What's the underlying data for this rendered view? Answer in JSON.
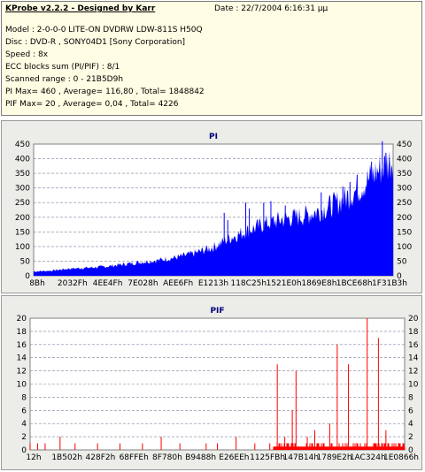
{
  "header": {
    "title": "KProbe v2.2.2 - Designed by Karr",
    "date": "Date : 22/7/2004 6:16:31 μμ",
    "lines": [
      "Model : 2-0-0-0 LITE-ON DVDRW LDW-811S   H50Q",
      "Disc : DVD-R , SONY04D1 [Sony Corporation]",
      "Speed : 8x",
      "ECC blocks sum (PI/PIF) : 8/1",
      "Scanned range : 0 - 21B5D9h",
      "PI Max= 460 , Average= 116,80 , Total= 1848842",
      "PIF Max= 20 , Average= 0,04 , Total= 4226"
    ]
  },
  "colors": {
    "info_bg": "#fffde3",
    "panel_bg": "#ecece8",
    "pi_bar": "#0000ff",
    "pif_bar": "#ff0000",
    "title_color": "#00007a"
  },
  "chart_data": [
    {
      "type": "area",
      "title": "PI",
      "ylim": [
        0,
        450
      ],
      "yticks": [
        0,
        50,
        100,
        150,
        200,
        250,
        300,
        350,
        400,
        450
      ],
      "xticks": [
        "8Bh",
        "2032Fh",
        "4EE4Fh",
        "7E028h",
        "AEE6Fh",
        "E1213h",
        "118C25h",
        "1521E0h",
        "1869E8h",
        "1BCE68h",
        "1F31B3h"
      ],
      "grid": true,
      "envelope": [
        {
          "x": 0.0,
          "y": 15
        },
        {
          "x": 0.05,
          "y": 18
        },
        {
          "x": 0.1,
          "y": 25
        },
        {
          "x": 0.15,
          "y": 28
        },
        {
          "x": 0.2,
          "y": 32
        },
        {
          "x": 0.25,
          "y": 40
        },
        {
          "x": 0.3,
          "y": 48
        },
        {
          "x": 0.35,
          "y": 55
        },
        {
          "x": 0.4,
          "y": 65
        },
        {
          "x": 0.45,
          "y": 80
        },
        {
          "x": 0.5,
          "y": 100
        },
        {
          "x": 0.55,
          "y": 135
        },
        {
          "x": 0.6,
          "y": 160
        },
        {
          "x": 0.65,
          "y": 185
        },
        {
          "x": 0.7,
          "y": 200
        },
        {
          "x": 0.75,
          "y": 210
        },
        {
          "x": 0.8,
          "y": 230
        },
        {
          "x": 0.85,
          "y": 260
        },
        {
          "x": 0.9,
          "y": 300
        },
        {
          "x": 0.95,
          "y": 360
        },
        {
          "x": 1.0,
          "y": 410
        }
      ],
      "peaks": [
        {
          "x": 0.53,
          "y": 215
        },
        {
          "x": 0.54,
          "y": 190
        },
        {
          "x": 0.59,
          "y": 250
        },
        {
          "x": 0.6,
          "y": 230
        },
        {
          "x": 0.64,
          "y": 250
        },
        {
          "x": 0.66,
          "y": 255
        },
        {
          "x": 0.7,
          "y": 240
        },
        {
          "x": 0.8,
          "y": 285
        },
        {
          "x": 0.86,
          "y": 305
        },
        {
          "x": 0.88,
          "y": 320
        },
        {
          "x": 0.9,
          "y": 345
        },
        {
          "x": 0.94,
          "y": 390
        },
        {
          "x": 0.97,
          "y": 460
        },
        {
          "x": 0.98,
          "y": 420
        }
      ]
    },
    {
      "type": "bar",
      "title": "PIF",
      "ylim": [
        0,
        20
      ],
      "yticks": [
        0,
        2,
        4,
        6,
        8,
        10,
        12,
        14,
        16,
        18,
        20
      ],
      "xticks": [
        "12h",
        "1B502h",
        "428F2h",
        "68FFEh",
        "8F780h",
        "B9488h",
        "E26EEh",
        "1125FBh",
        "147B14h",
        "1789E2h",
        "1AC324h",
        "1E0866h"
      ],
      "grid": true,
      "baseline_start": 0.65,
      "peaks": [
        {
          "x": 0.0,
          "y": 1
        },
        {
          "x": 0.02,
          "y": 1
        },
        {
          "x": 0.04,
          "y": 1
        },
        {
          "x": 0.08,
          "y": 2
        },
        {
          "x": 0.12,
          "y": 1
        },
        {
          "x": 0.18,
          "y": 1
        },
        {
          "x": 0.24,
          "y": 1
        },
        {
          "x": 0.3,
          "y": 1
        },
        {
          "x": 0.35,
          "y": 2
        },
        {
          "x": 0.4,
          "y": 1
        },
        {
          "x": 0.47,
          "y": 1
        },
        {
          "x": 0.5,
          "y": 1
        },
        {
          "x": 0.55,
          "y": 2
        },
        {
          "x": 0.6,
          "y": 1
        },
        {
          "x": 0.64,
          "y": 1
        },
        {
          "x": 0.66,
          "y": 13
        },
        {
          "x": 0.68,
          "y": 2
        },
        {
          "x": 0.7,
          "y": 6
        },
        {
          "x": 0.71,
          "y": 12
        },
        {
          "x": 0.74,
          "y": 2
        },
        {
          "x": 0.76,
          "y": 3
        },
        {
          "x": 0.8,
          "y": 4
        },
        {
          "x": 0.82,
          "y": 16
        },
        {
          "x": 0.85,
          "y": 13
        },
        {
          "x": 0.9,
          "y": 20
        },
        {
          "x": 0.93,
          "y": 17
        },
        {
          "x": 0.95,
          "y": 3
        }
      ]
    }
  ]
}
